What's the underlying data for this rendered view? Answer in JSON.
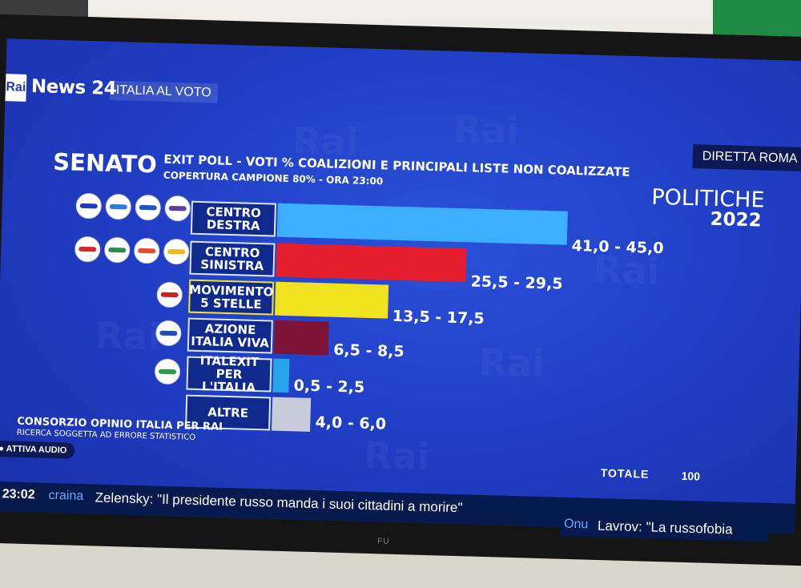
{
  "header": {
    "rai_logo": "Rai",
    "channel": "News 24",
    "program": "ITALIA AL VOTO",
    "live_badge": "DIRETTA ROMA"
  },
  "chart_data": {
    "type": "bar",
    "title": "SENATO",
    "subtitle": "EXIT POLL - VOTI % COALIZIONI E PRINCIPALI LISTE NON COALIZZATE",
    "subtitle2": "COPERTURA CAMPIONE 80% - ORA 23:00",
    "brand_title": "POLITICHE",
    "brand_year": "2022",
    "categories": [
      "CENTRO DESTRA",
      "CENTRO SINISTRA",
      "MOVIMENTO 5 STELLE",
      "AZIONE ITALIA VIVA",
      "ITALEXIT PER L'ITALIA",
      "ALTRE"
    ],
    "series": [
      {
        "values_low": [
          41.0,
          25.5,
          13.5,
          6.5,
          0.5,
          4.0
        ],
        "values_high": [
          45.0,
          29.5,
          17.5,
          8.5,
          2.5,
          6.0
        ]
      }
    ],
    "value_labels": [
      "41,0 - 45,0",
      "25,5 - 29,5",
      "13,5 - 17,5",
      "6,5 - 8,5",
      "0,5 - 2,5",
      "4,0 - 6,0"
    ],
    "colors": [
      "#3cb0ff",
      "#e51e2d",
      "#f1e31f",
      "#7d1438",
      "#28a2e8",
      "#c9ccdb"
    ],
    "xlim": [
      0,
      45
    ],
    "legend": "none",
    "total_label": "TOTALE",
    "total_value": "100"
  },
  "labels": {
    "centro_destra": [
      "CENTRO",
      "DESTRA"
    ],
    "centro_sinistra": [
      "CENTRO",
      "SINISTRA"
    ],
    "m5s": [
      "MOVIMENTO",
      "5 STELLE"
    ],
    "azione": [
      "AZIONE",
      "ITALIA VIVA"
    ],
    "italexit": [
      "ITALEXIT",
      "PER L'ITALIA"
    ],
    "altre": [
      "ALTRE"
    ]
  },
  "footer": {
    "source": "CONSORZIO OPINIO ITALIA PER RAI",
    "note": "RICERCA SOGGETTA AD ERRORE STATISTICO",
    "audio_button": "ATTIVA AUDIO"
  },
  "ticker": {
    "time": "23:02",
    "source1": "craina",
    "text1": "Zelensky: \"Il presidente russo manda i suoi cittadini a morire\"",
    "source2": "Onu",
    "text2": "Lavrov: \"La russofobia"
  },
  "tv_brand": "FU"
}
